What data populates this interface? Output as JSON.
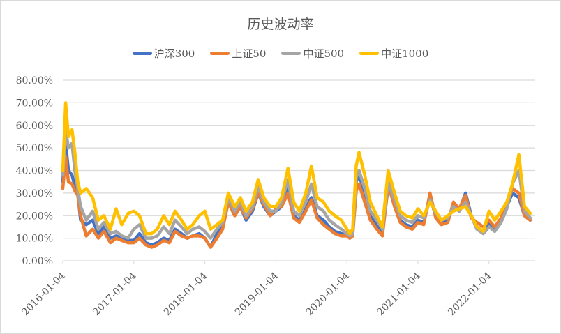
{
  "chart_data": {
    "type": "line",
    "title": "历史波动率",
    "xlabel": "",
    "ylabel": "",
    "ylim": [
      0,
      0.8
    ],
    "y_ticks": [
      "0.00%",
      "10.00%",
      "20.00%",
      "30.00%",
      "40.00%",
      "50.00%",
      "60.00%",
      "70.00%",
      "80.00%"
    ],
    "x_ticks": [
      "2016-01-04",
      "2017-01-04",
      "2018-01-04",
      "2019-01-04",
      "2020-01-04",
      "2021-01-04",
      "2022-01-04"
    ],
    "grid": true,
    "legend_position": "top",
    "x": [
      2016.0,
      2016.04,
      2016.08,
      2016.13,
      2016.17,
      2016.21,
      2016.25,
      2016.33,
      2016.42,
      2016.5,
      2016.58,
      2016.67,
      2016.75,
      2016.83,
      2016.92,
      2017.0,
      2017.08,
      2017.17,
      2017.25,
      2017.33,
      2017.42,
      2017.5,
      2017.58,
      2017.67,
      2017.75,
      2017.83,
      2017.92,
      2018.0,
      2018.08,
      2018.17,
      2018.25,
      2018.33,
      2018.42,
      2018.5,
      2018.58,
      2018.67,
      2018.75,
      2018.83,
      2018.92,
      2019.0,
      2019.08,
      2019.17,
      2019.25,
      2019.33,
      2019.42,
      2019.5,
      2019.58,
      2019.67,
      2019.75,
      2019.83,
      2019.92,
      2020.0,
      2020.04,
      2020.08,
      2020.13,
      2020.17,
      2020.25,
      2020.33,
      2020.42,
      2020.5,
      2020.58,
      2020.67,
      2020.75,
      2020.83,
      2020.92,
      2021.0,
      2021.08,
      2021.17,
      2021.25,
      2021.33,
      2021.42,
      2021.5,
      2021.58,
      2021.67,
      2021.75,
      2021.83,
      2021.92,
      2022.0,
      2022.08,
      2022.17,
      2022.25,
      2022.33,
      2022.42,
      2022.5,
      2022.58
    ],
    "series": [
      {
        "name": "沪深300",
        "color": "#4472C4",
        "values": [
          0.35,
          0.52,
          0.4,
          0.38,
          0.33,
          0.3,
          0.18,
          0.16,
          0.18,
          0.12,
          0.15,
          0.1,
          0.11,
          0.1,
          0.09,
          0.09,
          0.12,
          0.08,
          0.07,
          0.08,
          0.1,
          0.09,
          0.14,
          0.12,
          0.1,
          0.11,
          0.12,
          0.1,
          0.06,
          0.12,
          0.15,
          0.26,
          0.2,
          0.24,
          0.18,
          0.22,
          0.3,
          0.24,
          0.2,
          0.22,
          0.24,
          0.32,
          0.2,
          0.18,
          0.24,
          0.28,
          0.2,
          0.18,
          0.15,
          0.13,
          0.12,
          0.12,
          0.1,
          0.11,
          0.35,
          0.38,
          0.3,
          0.2,
          0.16,
          0.12,
          0.33,
          0.25,
          0.18,
          0.16,
          0.15,
          0.18,
          0.17,
          0.28,
          0.2,
          0.17,
          0.18,
          0.25,
          0.22,
          0.3,
          0.2,
          0.15,
          0.13,
          0.17,
          0.14,
          0.18,
          0.24,
          0.3,
          0.28,
          0.2,
          0.18
        ]
      },
      {
        "name": "上证50",
        "color": "#ED7D31",
        "values": [
          0.32,
          0.46,
          0.35,
          0.34,
          0.31,
          0.29,
          0.2,
          0.11,
          0.14,
          0.1,
          0.13,
          0.08,
          0.1,
          0.09,
          0.08,
          0.08,
          0.1,
          0.07,
          0.06,
          0.07,
          0.09,
          0.08,
          0.13,
          0.11,
          0.1,
          0.11,
          0.11,
          0.1,
          0.06,
          0.1,
          0.14,
          0.26,
          0.2,
          0.24,
          0.19,
          0.23,
          0.3,
          0.25,
          0.2,
          0.23,
          0.24,
          0.3,
          0.19,
          0.17,
          0.22,
          0.27,
          0.19,
          0.16,
          0.14,
          0.12,
          0.11,
          0.11,
          0.1,
          0.11,
          0.31,
          0.34,
          0.26,
          0.18,
          0.14,
          0.11,
          0.34,
          0.24,
          0.17,
          0.15,
          0.14,
          0.17,
          0.16,
          0.3,
          0.19,
          0.16,
          0.17,
          0.26,
          0.23,
          0.29,
          0.19,
          0.17,
          0.15,
          0.18,
          0.15,
          0.19,
          0.25,
          0.32,
          0.3,
          0.2,
          0.18
        ]
      },
      {
        "name": "中证500",
        "color": "#A5A5A5",
        "values": [
          0.38,
          0.58,
          0.5,
          0.52,
          0.4,
          0.32,
          0.24,
          0.18,
          0.22,
          0.14,
          0.17,
          0.12,
          0.13,
          0.11,
          0.1,
          0.14,
          0.16,
          0.1,
          0.1,
          0.11,
          0.15,
          0.12,
          0.18,
          0.15,
          0.12,
          0.14,
          0.15,
          0.13,
          0.1,
          0.14,
          0.17,
          0.28,
          0.22,
          0.26,
          0.2,
          0.24,
          0.33,
          0.26,
          0.22,
          0.22,
          0.26,
          0.36,
          0.22,
          0.2,
          0.26,
          0.34,
          0.24,
          0.22,
          0.18,
          0.16,
          0.14,
          0.12,
          0.11,
          0.12,
          0.37,
          0.4,
          0.32,
          0.22,
          0.18,
          0.14,
          0.35,
          0.27,
          0.2,
          0.18,
          0.17,
          0.2,
          0.19,
          0.27,
          0.21,
          0.18,
          0.19,
          0.24,
          0.22,
          0.26,
          0.2,
          0.14,
          0.12,
          0.15,
          0.13,
          0.17,
          0.23,
          0.34,
          0.4,
          0.22,
          0.19
        ]
      },
      {
        "name": "中证1000",
        "color": "#FFC000",
        "values": [
          0.4,
          0.7,
          0.55,
          0.58,
          0.48,
          0.35,
          0.3,
          0.32,
          0.28,
          0.18,
          0.2,
          0.14,
          0.23,
          0.16,
          0.21,
          0.22,
          0.2,
          0.12,
          0.12,
          0.14,
          0.2,
          0.16,
          0.22,
          0.18,
          0.14,
          0.16,
          0.2,
          0.22,
          0.14,
          0.16,
          0.18,
          0.3,
          0.24,
          0.28,
          0.22,
          0.26,
          0.36,
          0.28,
          0.24,
          0.24,
          0.28,
          0.41,
          0.26,
          0.22,
          0.3,
          0.42,
          0.28,
          0.26,
          0.22,
          0.2,
          0.18,
          0.14,
          0.12,
          0.14,
          0.42,
          0.48,
          0.38,
          0.26,
          0.2,
          0.15,
          0.4,
          0.3,
          0.22,
          0.2,
          0.19,
          0.23,
          0.2,
          0.26,
          0.22,
          0.18,
          0.2,
          0.22,
          0.23,
          0.24,
          0.2,
          0.15,
          0.13,
          0.22,
          0.18,
          0.22,
          0.26,
          0.34,
          0.47,
          0.24,
          0.21
        ]
      }
    ]
  },
  "legend": [
    {
      "label": "沪深300",
      "color": "#4472C4"
    },
    {
      "label": "上证50",
      "color": "#ED7D31"
    },
    {
      "label": "中证500",
      "color": "#A5A5A5"
    },
    {
      "label": "中证1000",
      "color": "#FFC000"
    }
  ]
}
